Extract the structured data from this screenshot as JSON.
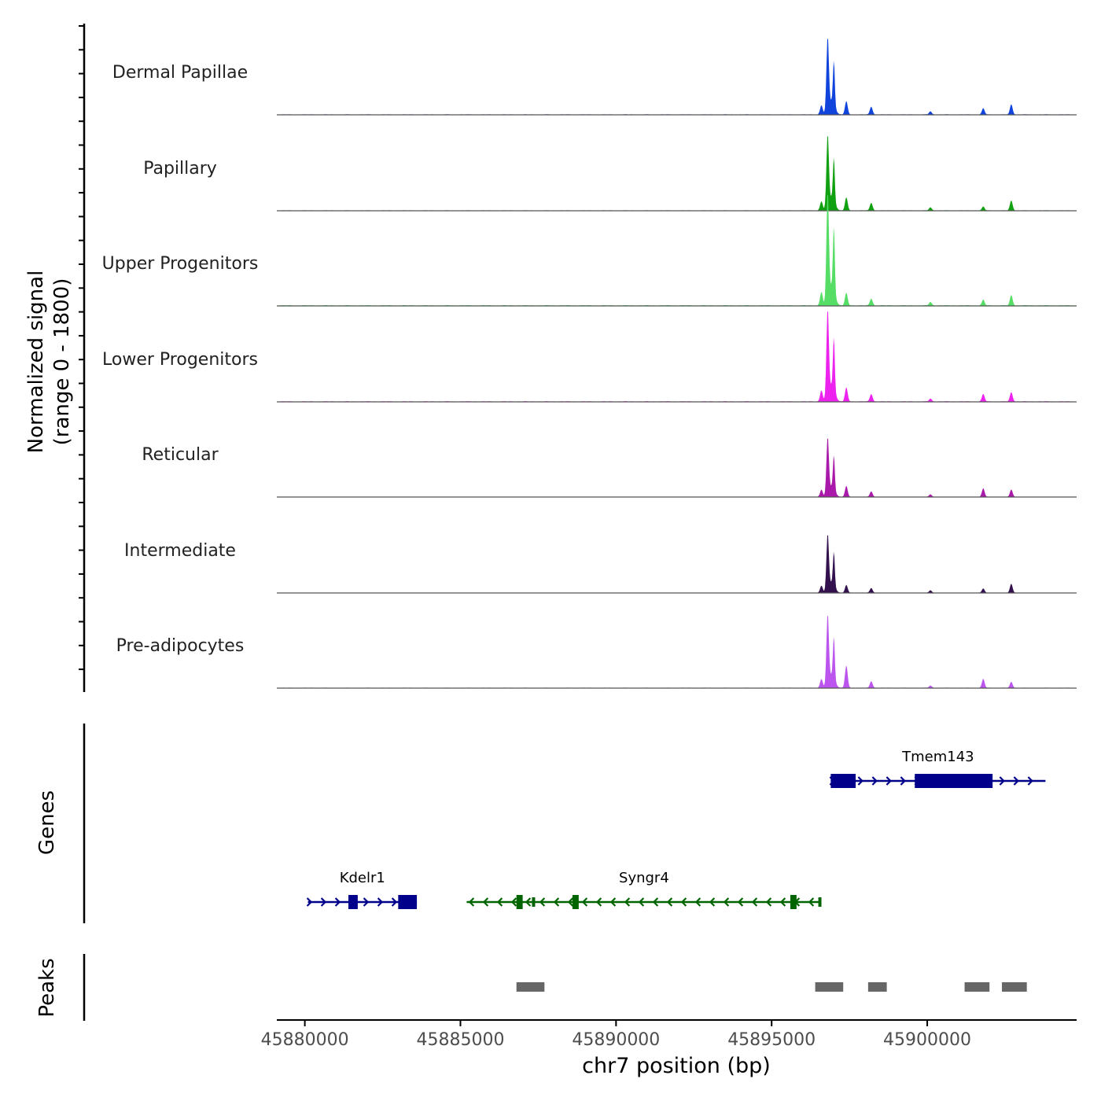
{
  "chart_data": {
    "type": "area",
    "title": "",
    "ylabel_signal": [
      "Normalized signal",
      "(range 0 - 1800)"
    ],
    "ylabel_genes": "Genes",
    "ylabel_peaks": "Peaks",
    "xlabel": "chr7 position (bp)",
    "xlim": [
      45879100,
      45904800
    ],
    "ylim": [
      0,
      1800
    ],
    "x_ticks": [
      45880000,
      45885000,
      45890000,
      45895000,
      45900000
    ],
    "x_tick_labels": [
      "45880000",
      "45885000",
      "45890000",
      "45895000",
      "45900000"
    ],
    "tracks": [
      {
        "name": "Dermal Papillae",
        "color": "#1144dd",
        "scale": 1.0,
        "minor": [
          [
            45897400,
            0.17
          ],
          [
            45898200,
            0.1
          ],
          [
            45901800,
            0.08
          ],
          [
            45902700,
            0.13
          ],
          [
            45900100,
            0.04
          ]
        ]
      },
      {
        "name": "Papillary",
        "color": "#11a011",
        "scale": 0.98,
        "minor": [
          [
            45897400,
            0.17
          ],
          [
            45898200,
            0.1
          ],
          [
            45901800,
            0.05
          ],
          [
            45902700,
            0.13
          ],
          [
            45900100,
            0.04
          ]
        ]
      },
      {
        "name": "Upper Progenitors",
        "color": "#55dd66",
        "scale": 1.46,
        "minor": [
          [
            45897400,
            0.11
          ],
          [
            45898200,
            0.06
          ],
          [
            45901800,
            0.05
          ],
          [
            45902700,
            0.09
          ],
          [
            45900100,
            0.03
          ]
        ]
      },
      {
        "name": "Lower Progenitors",
        "color": "#ee22ee",
        "scale": 1.19,
        "minor": [
          [
            45897400,
            0.15
          ],
          [
            45898200,
            0.08
          ],
          [
            45901800,
            0.08
          ],
          [
            45902700,
            0.1
          ],
          [
            45900100,
            0.03
          ]
        ]
      },
      {
        "name": "Reticular",
        "color": "#aa1aaa",
        "scale": 0.77,
        "minor": [
          [
            45897400,
            0.18
          ],
          [
            45898200,
            0.09
          ],
          [
            45901800,
            0.14
          ],
          [
            45902700,
            0.12
          ],
          [
            45900100,
            0.04
          ]
        ]
      },
      {
        "name": "Intermediate",
        "color": "#33114f",
        "scale": 0.76,
        "minor": [
          [
            45897400,
            0.13
          ],
          [
            45898200,
            0.08
          ],
          [
            45901800,
            0.07
          ],
          [
            45902700,
            0.15
          ],
          [
            45900100,
            0.04
          ]
        ]
      },
      {
        "name": "Pre-adipocytes",
        "color": "#bb55ee",
        "scale": 0.95,
        "minor": [
          [
            45897400,
            0.3
          ],
          [
            45898200,
            0.09
          ],
          [
            45901800,
            0.12
          ],
          [
            45902700,
            0.08
          ],
          [
            45900100,
            0.03
          ]
        ]
      }
    ],
    "genes": [
      {
        "name": "Tmem143",
        "strand": "+",
        "color": "#00008b",
        "row": 0,
        "start": 45896900,
        "end": 45903800,
        "exons": [
          [
            45896900,
            45897700,
            "big"
          ],
          [
            45899600,
            45902100,
            "big"
          ]
        ]
      },
      {
        "name": "Kdelr1",
        "strand": "+",
        "color": "#00008b",
        "row": 1,
        "start": 45880100,
        "end": 45883600,
        "exons": [
          [
            45881400,
            45881700,
            "big"
          ],
          [
            45883000,
            45883600,
            "big"
          ]
        ]
      },
      {
        "name": "Syngr4",
        "strand": "-",
        "color": "#006400",
        "row": 1,
        "start": 45885200,
        "end": 45896600,
        "exons": [
          [
            45886800,
            45887000,
            "big"
          ],
          [
            45887300,
            45887400,
            "small"
          ],
          [
            45888600,
            45888800,
            "big"
          ],
          [
            45895600,
            45895800,
            "big"
          ],
          [
            45896500,
            45896600,
            "small"
          ]
        ]
      }
    ],
    "peaks": [
      [
        45886800,
        45887700
      ],
      [
        45896400,
        45897300
      ],
      [
        45898100,
        45898700
      ],
      [
        45901200,
        45902000
      ],
      [
        45902400,
        45903200
      ]
    ]
  }
}
